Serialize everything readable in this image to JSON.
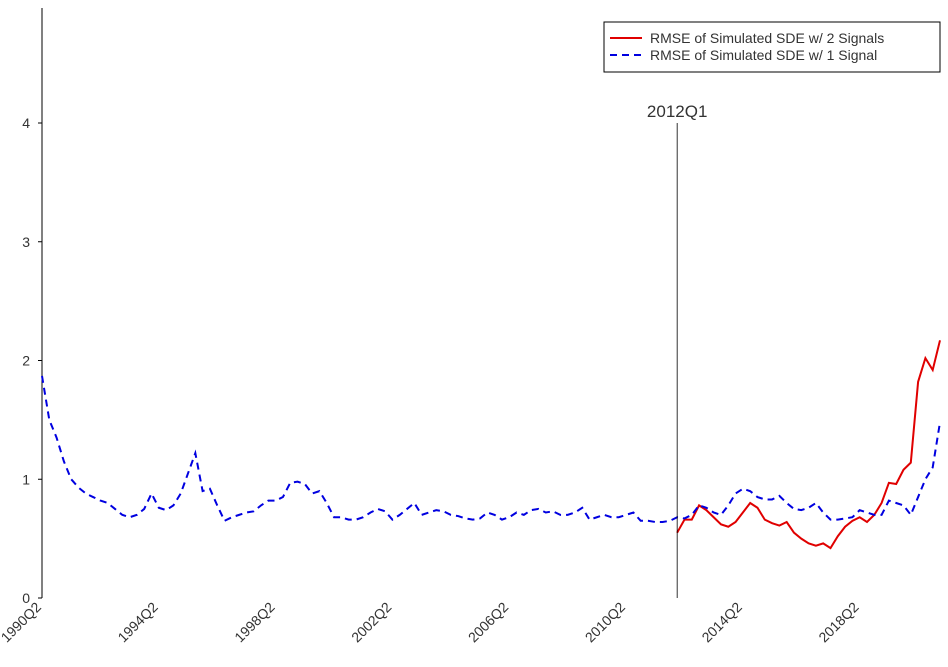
{
  "chart_data": {
    "type": "line",
    "categories": [
      "1990Q2",
      null,
      null,
      null,
      null,
      null,
      null,
      null,
      null,
      null,
      null,
      null,
      null,
      null,
      null,
      null,
      "1994Q2",
      null,
      null,
      null,
      null,
      null,
      null,
      null,
      null,
      null,
      null,
      null,
      null,
      null,
      null,
      null,
      "1998Q2",
      null,
      null,
      null,
      null,
      null,
      null,
      null,
      null,
      null,
      null,
      null,
      null,
      null,
      null,
      null,
      "2002Q2",
      null,
      null,
      null,
      null,
      null,
      null,
      null,
      null,
      null,
      null,
      null,
      null,
      null,
      null,
      null,
      "2006Q2",
      null,
      null,
      null,
      null,
      null,
      null,
      null,
      null,
      null,
      null,
      null,
      null,
      null,
      null,
      null,
      "2010Q2",
      null,
      null,
      null,
      null,
      null,
      null,
      null,
      null,
      null,
      null,
      null,
      null,
      null,
      null,
      null,
      "2014Q2",
      null,
      null,
      null,
      null,
      null,
      null,
      null,
      null,
      null,
      null,
      null,
      null,
      null,
      null,
      null,
      "2018Q2",
      null,
      null,
      null,
      null,
      null,
      null,
      null,
      null,
      null,
      null,
      null
    ],
    "series": [
      {
        "name": "RMSE of Simulated SDE w/ 2 Signals",
        "color": "#e00000",
        "dash": false,
        "values": [
          null,
          null,
          null,
          null,
          null,
          null,
          null,
          null,
          null,
          null,
          null,
          null,
          null,
          null,
          null,
          null,
          null,
          null,
          null,
          null,
          null,
          null,
          null,
          null,
          null,
          null,
          null,
          null,
          null,
          null,
          null,
          null,
          null,
          null,
          null,
          null,
          null,
          null,
          null,
          null,
          null,
          null,
          null,
          null,
          null,
          null,
          null,
          null,
          null,
          null,
          null,
          null,
          null,
          null,
          null,
          null,
          null,
          null,
          null,
          null,
          null,
          null,
          null,
          null,
          null,
          null,
          null,
          null,
          null,
          null,
          null,
          null,
          null,
          null,
          null,
          null,
          null,
          null,
          null,
          null,
          null,
          null,
          null,
          null,
          null,
          null,
          null,
          0.55,
          0.66,
          0.66,
          0.78,
          0.74,
          0.68,
          0.62,
          0.6,
          0.64,
          0.72,
          0.8,
          0.76,
          0.66,
          0.63,
          0.61,
          0.64,
          0.55,
          0.5,
          0.46,
          0.44,
          0.46,
          0.42,
          0.52,
          0.6,
          0.65,
          0.68,
          0.64,
          0.7,
          0.8,
          0.97,
          0.96,
          1.08,
          1.14,
          1.82,
          2.02,
          1.92,
          2.17
        ]
      },
      {
        "name": "RMSE of Simulated SDE w/ 1 Signal",
        "color": "#0000e0",
        "dash": true,
        "values": [
          1.87,
          1.5,
          1.35,
          1.15,
          1.0,
          0.93,
          0.88,
          0.85,
          0.82,
          0.8,
          0.75,
          0.7,
          0.68,
          0.7,
          0.75,
          0.88,
          0.76,
          0.74,
          0.78,
          0.88,
          1.05,
          1.22,
          0.9,
          0.92,
          0.78,
          0.65,
          0.68,
          0.7,
          0.72,
          0.73,
          0.78,
          0.82,
          0.82,
          0.85,
          0.97,
          0.98,
          0.96,
          0.88,
          0.9,
          0.8,
          0.68,
          0.68,
          0.66,
          0.66,
          0.68,
          0.72,
          0.75,
          0.73,
          0.66,
          0.7,
          0.75,
          0.8,
          0.7,
          0.72,
          0.74,
          0.73,
          0.7,
          0.69,
          0.67,
          0.66,
          0.67,
          0.72,
          0.7,
          0.66,
          0.68,
          0.72,
          0.7,
          0.74,
          0.75,
          0.72,
          0.73,
          0.7,
          0.7,
          0.72,
          0.76,
          0.66,
          0.68,
          0.7,
          0.68,
          0.68,
          0.7,
          0.72,
          0.65,
          0.65,
          0.64,
          0.64,
          0.65,
          0.68,
          0.67,
          0.7,
          0.78,
          0.76,
          0.72,
          0.7,
          0.78,
          0.88,
          0.92,
          0.9,
          0.85,
          0.83,
          0.83,
          0.86,
          0.8,
          0.75,
          0.74,
          0.76,
          0.8,
          0.72,
          0.66,
          0.66,
          0.67,
          0.68,
          0.74,
          0.72,
          0.7,
          0.7,
          0.82,
          0.8,
          0.78,
          0.7,
          0.85,
          1.0,
          1.1,
          1.48
        ]
      }
    ],
    "annotation": {
      "text": "2012Q1",
      "category_index": 87
    },
    "ylim": [
      0,
      5
    ],
    "yticks": [
      0,
      1,
      2,
      3,
      4
    ],
    "legend": "upper right"
  }
}
